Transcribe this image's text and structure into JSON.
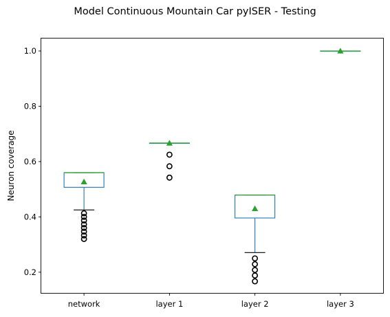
{
  "title": "Model Continuous Mountain Car pyISER - Testing",
  "chart_data": {
    "type": "box",
    "title": "Model Continuous Mountain Car pyISER - Testing",
    "xlabel": "",
    "ylabel": "Neuron coverage",
    "ylim": [
      0.125,
      1.045
    ],
    "yticks": [
      0.2,
      0.4,
      0.6,
      0.8,
      1.0
    ],
    "ytick_labels": [
      "0.2",
      "0.4",
      "0.6",
      "0.8",
      "1.0"
    ],
    "categories": [
      "network",
      "layer 1",
      "layer 2",
      "layer 3"
    ],
    "boxes": [
      {
        "q1": 0.507,
        "median": 0.56,
        "q3": 0.56,
        "whisker_low": 0.425,
        "whisker_high": 0.56,
        "mean": 0.527,
        "outliers": [
          0.32,
          0.333,
          0.347,
          0.36,
          0.373,
          0.387,
          0.4,
          0.413
        ]
      },
      {
        "q1": 0.667,
        "median": 0.667,
        "q3": 0.667,
        "whisker_low": 0.667,
        "whisker_high": 0.667,
        "mean": 0.667,
        "outliers": [
          0.542,
          0.583,
          0.625
        ]
      },
      {
        "q1": 0.396,
        "median": 0.479,
        "q3": 0.479,
        "whisker_low": 0.271,
        "whisker_high": 0.479,
        "mean": 0.43,
        "outliers": [
          0.167,
          0.188,
          0.208,
          0.229,
          0.25
        ]
      },
      {
        "q1": 1.0,
        "median": 1.0,
        "q3": 1.0,
        "whisker_low": 1.0,
        "whisker_high": 1.0,
        "mean": 1.0,
        "outliers": []
      }
    ],
    "colors": {
      "box": "#1f77b4",
      "median": "#2ca02c",
      "mean": "#2ca02c",
      "whisker_cap": "#000000",
      "flier": "#000000"
    },
    "grid": false,
    "show_means": true
  }
}
